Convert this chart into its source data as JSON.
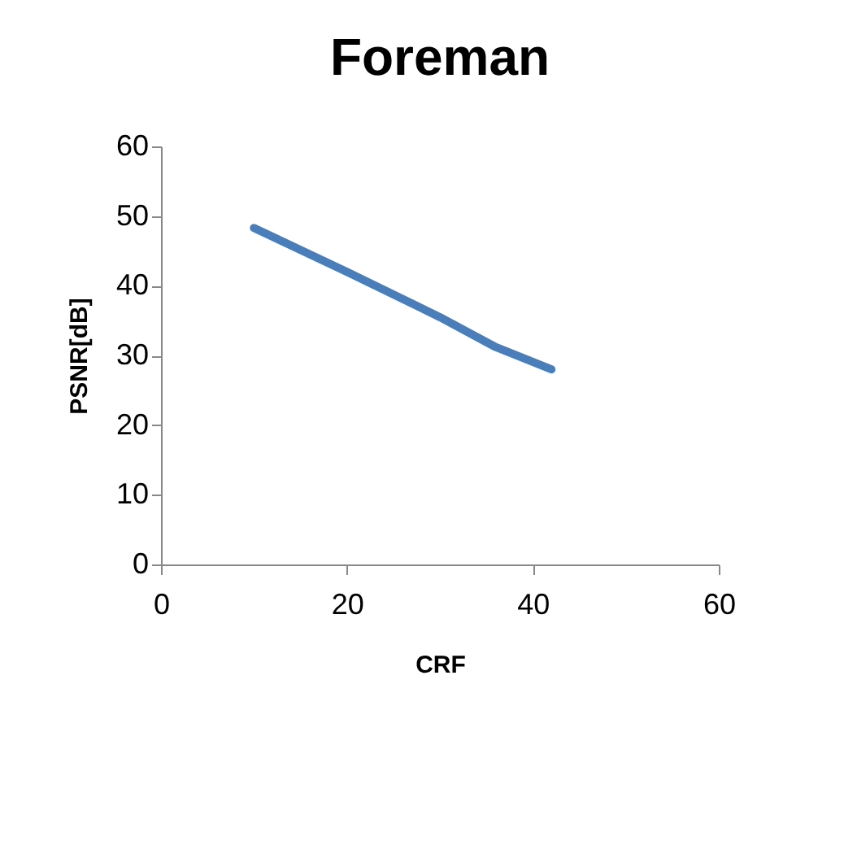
{
  "chart_data": {
    "type": "line",
    "title": "Foreman",
    "xlabel": "CRF",
    "ylabel": "PSNR[dB]",
    "x": [
      10,
      20,
      30,
      36,
      42
    ],
    "series": [
      {
        "color": "#4a7ebb",
        "values": [
          48.3,
          42,
          35.5,
          31.2,
          28
        ]
      }
    ],
    "xlim": [
      0,
      60
    ],
    "xticks": [
      0,
      20,
      40,
      60
    ],
    "ylim": [
      0,
      60
    ],
    "yticks": [
      0,
      10,
      20,
      30,
      40,
      50,
      60
    ],
    "grid": false,
    "legend": false,
    "marker": "none",
    "line_style": "solid"
  }
}
